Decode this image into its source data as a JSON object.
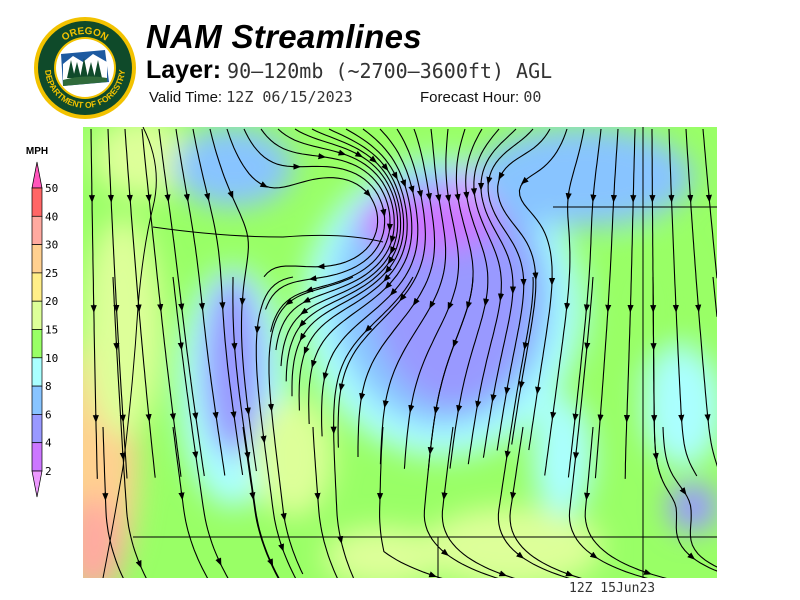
{
  "header": {
    "title": "NAM Streamlines",
    "layer_label": "Layer:",
    "layer_value": "90–120mb (~2700–3600ft) AGL",
    "valid_label": "Valid Time:",
    "valid_value": "12Z 06/15/2023",
    "forecast_label": "Forecast Hour:",
    "forecast_value": "00"
  },
  "logo": {
    "text_top": "OREGON",
    "text_bottom": "DEPARTMENT OF FORESTRY",
    "colors": {
      "ring": "#f2c200",
      "field": "#0f4a2a",
      "sky": "#1d5aa0"
    }
  },
  "colorbar": {
    "unit": "MPH",
    "labels": [
      "50",
      "40",
      "30",
      "25",
      "20",
      "15",
      "10",
      "8",
      "6",
      "4",
      "2"
    ],
    "colors_top_to_bottom": [
      "#ff55bb",
      "#ff6666",
      "#ffaaa0",
      "#ffd090",
      "#ffee88",
      "#ddff99",
      "#99ff66",
      "#aaffff",
      "#88c4ff",
      "#9999ff",
      "#cc77ff",
      "#ee99ff"
    ]
  },
  "map": {
    "field": "wind speed (MPH) with streamlines",
    "colors": {
      "low": "#cc77ff",
      "mid": "#9999ff",
      "base": "#99ff66",
      "high": "#ffd090"
    }
  },
  "footer": {
    "stamp": "12Z 15Jun23"
  }
}
